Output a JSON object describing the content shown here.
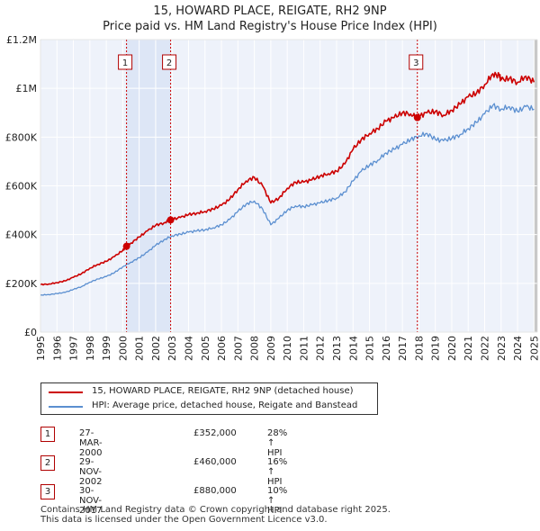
{
  "title_line1": "15, HOWARD PLACE, REIGATE, RH2 9NP",
  "title_line2": "Price paid vs. HM Land Registry's House Price Index (HPI)",
  "chart_data": {
    "type": "line",
    "xlim": [
      1995.0,
      2025.2
    ],
    "ylim": [
      0,
      1200000
    ],
    "ytick_values": [
      0,
      200000,
      400000,
      600000,
      800000,
      1000000,
      1200000
    ],
    "ytick_labels": [
      "£0",
      "£200K",
      "£400K",
      "£600K",
      "£800K",
      "£1M",
      "£1.2M"
    ],
    "xtick_labels": [
      "1995",
      "1996",
      "1997",
      "1998",
      "1999",
      "2000",
      "2001",
      "2002",
      "2003",
      "2004",
      "2005",
      "2006",
      "2007",
      "2008",
      "2009",
      "2010",
      "2011",
      "2012",
      "2013",
      "2014",
      "2015",
      "2016",
      "2017",
      "2018",
      "2019",
      "2020",
      "2021",
      "2022",
      "2023",
      "2024",
      "2025"
    ],
    "series": [
      {
        "name": "15, HOWARD PLACE, REIGATE, RH2 9NP (detached house)",
        "color": "#cc0000",
        "x": [
          1995.0,
          1995.5,
          1996.0,
          1996.5,
          1997.0,
          1997.5,
          1998.0,
          1998.5,
          1999.0,
          1999.5,
          2000.0,
          2000.23,
          2000.5,
          2001.0,
          2001.5,
          2002.0,
          2002.5,
          2002.91,
          2003.0,
          2003.5,
          2004.0,
          2004.5,
          2005.0,
          2005.5,
          2006.0,
          2006.5,
          2007.0,
          2007.5,
          2008.0,
          2008.5,
          2009.0,
          2009.5,
          2010.0,
          2010.5,
          2011.0,
          2011.5,
          2012.0,
          2012.5,
          2013.0,
          2013.5,
          2014.0,
          2014.5,
          2015.0,
          2015.5,
          2016.0,
          2016.5,
          2017.0,
          2017.5,
          2017.91,
          2018.0,
          2018.5,
          2019.0,
          2019.5,
          2020.0,
          2020.5,
          2021.0,
          2021.5,
          2022.0,
          2022.5,
          2022.9,
          2023.0,
          2023.5,
          2024.0,
          2024.5,
          2025.0
        ],
        "y": [
          195000,
          197000,
          203000,
          210000,
          225000,
          240000,
          262000,
          278000,
          290000,
          310000,
          335000,
          352000,
          365000,
          390000,
          415000,
          438000,
          448000,
          460000,
          462000,
          470000,
          482000,
          488000,
          495000,
          505000,
          520000,
          545000,
          585000,
          620000,
          635000,
          600000,
          530000,
          550000,
          590000,
          615000,
          615000,
          625000,
          640000,
          650000,
          660000,
          690000,
          750000,
          790000,
          815000,
          835000,
          865000,
          880000,
          900000,
          895000,
          880000,
          885000,
          900000,
          905000,
          890000,
          910000,
          935000,
          965000,
          980000,
          1015000,
          1060000,
          1050000,
          1035000,
          1040000,
          1025000,
          1050000,
          1025000
        ]
      },
      {
        "name": "HPI: Average price, detached house, Reigate and Banstead",
        "color": "#5b8fd0",
        "x": [
          1995.0,
          1995.5,
          1996.0,
          1996.5,
          1997.0,
          1997.5,
          1998.0,
          1998.5,
          1999.0,
          1999.5,
          2000.0,
          2000.5,
          2001.0,
          2001.5,
          2002.0,
          2002.5,
          2003.0,
          2003.5,
          2004.0,
          2004.5,
          2005.0,
          2005.5,
          2006.0,
          2006.5,
          2007.0,
          2007.5,
          2008.0,
          2008.5,
          2009.0,
          2009.5,
          2010.0,
          2010.5,
          2011.0,
          2011.5,
          2012.0,
          2012.5,
          2013.0,
          2013.5,
          2014.0,
          2014.5,
          2015.0,
          2015.5,
          2016.0,
          2016.5,
          2017.0,
          2017.5,
          2018.0,
          2018.5,
          2019.0,
          2019.5,
          2020.0,
          2020.5,
          2021.0,
          2021.5,
          2022.0,
          2022.5,
          2023.0,
          2023.5,
          2024.0,
          2024.5,
          2025.0
        ],
        "y": [
          152000,
          154000,
          158000,
          163000,
          175000,
          187000,
          205000,
          218000,
          228000,
          244000,
          268000,
          287000,
          305000,
          328000,
          356000,
          378000,
          395000,
          402000,
          410000,
          415000,
          420000,
          428000,
          440000,
          462000,
          495000,
          525000,
          538000,
          505000,
          440000,
          468000,
          500000,
          518000,
          515000,
          522000,
          530000,
          540000,
          550000,
          575000,
          620000,
          660000,
          685000,
          705000,
          735000,
          750000,
          770000,
          790000,
          805000,
          815000,
          790000,
          785000,
          795000,
          810000,
          835000,
          860000,
          895000,
          930000,
          915000,
          925000,
          905000,
          925000,
          915000
        ]
      }
    ],
    "transactions": [
      {
        "marker": "1",
        "x": 2000.23,
        "price": 352000,
        "shade_until": 2002.91
      },
      {
        "marker": "2",
        "x": 2002.91,
        "price": 460000
      },
      {
        "marker": "3",
        "x": 2017.91,
        "price": 880000
      }
    ],
    "shaded_right_from": 2025.0
  },
  "legend": {
    "items": [
      {
        "label": "15, HOWARD PLACE, REIGATE, RH2 9NP (detached house)",
        "color": "#cc0000"
      },
      {
        "label": "HPI: Average price, detached house, Reigate and Banstead",
        "color": "#5b8fd0"
      }
    ]
  },
  "transactions_table": [
    {
      "marker": "1",
      "date": "27-MAR-2000",
      "price": "£352,000",
      "hpi": "28% ↑ HPI"
    },
    {
      "marker": "2",
      "date": "29-NOV-2002",
      "price": "£460,000",
      "hpi": "16% ↑ HPI"
    },
    {
      "marker": "3",
      "date": "30-NOV-2017",
      "price": "£880,000",
      "hpi": "10% ↑ HPI"
    }
  ],
  "footer": {
    "line1": "Contains HM Land Registry data © Crown copyright and database right 2025.",
    "line2": "This data is licensed under the Open Government Licence v3.0."
  }
}
